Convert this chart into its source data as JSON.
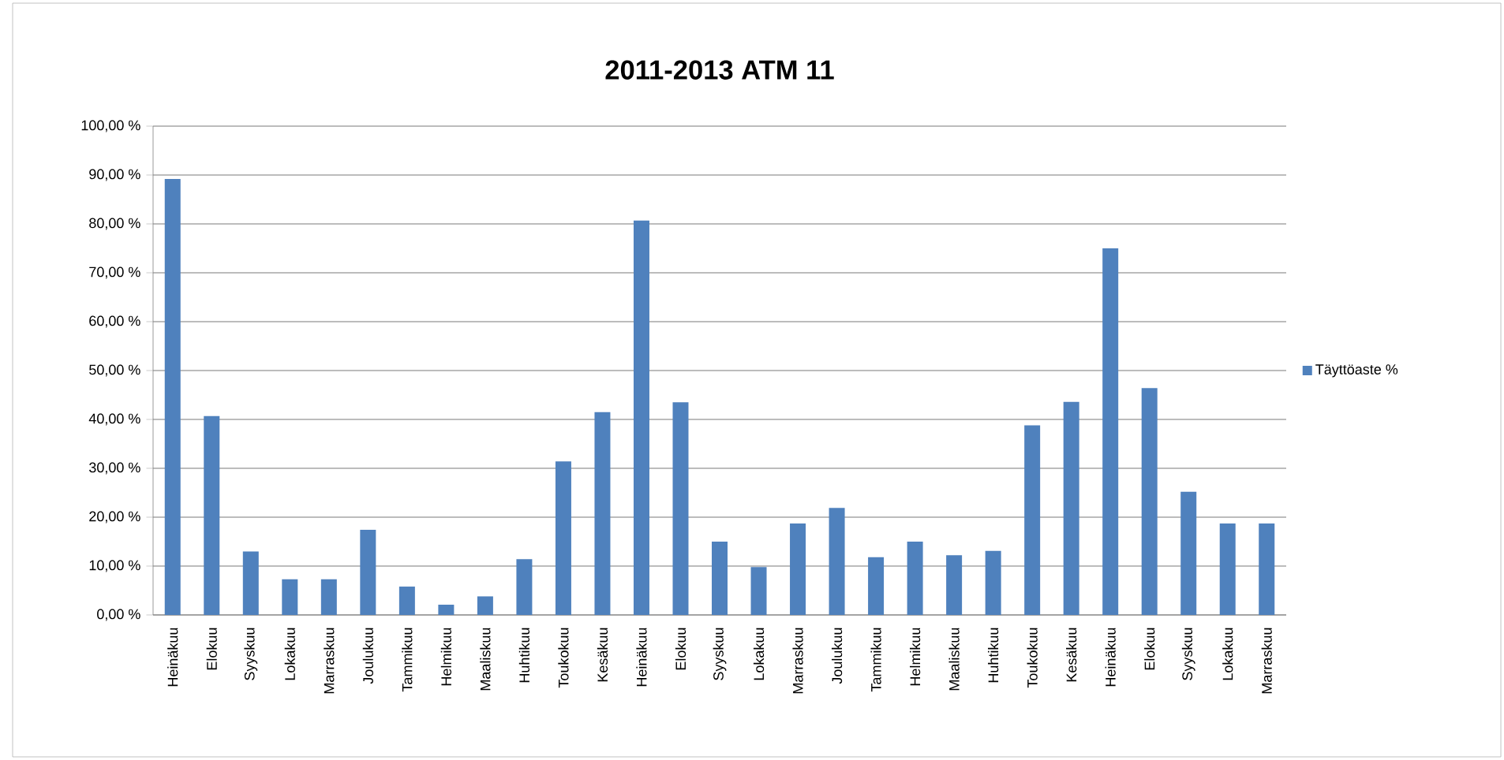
{
  "chart_data": {
    "type": "bar",
    "title": "2011-2013 ATM 11",
    "categories": [
      "Heinäkuu",
      "Elokuu",
      "Syyskuu",
      "Lokakuu",
      "Marraskuu",
      "Joulukuu",
      "Tammikuu",
      "Helmikuu",
      "Maaliskuu",
      "Huhtikuu",
      "Toukokuu",
      "Kesäkuu",
      "Heinäkuu",
      "Elokuu",
      "Syyskuu",
      "Lokakuu",
      "Marraskuu",
      "Joulukuu",
      "Tammikuu",
      "Helmikuu",
      "Maaliskuu",
      "Huhtikuu",
      "Toukokuu",
      "Kesäkuu",
      "Heinäkuu",
      "Elokuu",
      "Syyskuu",
      "Lokakuu",
      "Marraskuu"
    ],
    "series": [
      {
        "name": "Täyttöaste %",
        "color": "#4f81bd",
        "values": [
          89.2,
          40.7,
          13.0,
          7.3,
          7.3,
          17.4,
          5.8,
          2.1,
          3.8,
          11.4,
          31.4,
          41.5,
          80.7,
          43.5,
          15.0,
          9.8,
          18.7,
          21.9,
          11.8,
          15.0,
          12.2,
          13.1,
          38.8,
          43.6,
          75.0,
          46.4,
          25.2,
          18.7,
          18.7
        ]
      }
    ],
    "ylim": [
      0,
      100
    ],
    "yticks": [
      {
        "value": 0,
        "label": "0,00 %"
      },
      {
        "value": 10,
        "label": "10,00 %"
      },
      {
        "value": 20,
        "label": "20,00 %"
      },
      {
        "value": 30,
        "label": "30,00 %"
      },
      {
        "value": 40,
        "label": "40,00 %"
      },
      {
        "value": 50,
        "label": "50,00 %"
      },
      {
        "value": 60,
        "label": "60,00 %"
      },
      {
        "value": 70,
        "label": "70,00 %"
      },
      {
        "value": 80,
        "label": "80,00 %"
      },
      {
        "value": 90,
        "label": "90,00 %"
      },
      {
        "value": 100,
        "label": "100,00 %"
      }
    ],
    "grid": "y",
    "legend": "right"
  }
}
